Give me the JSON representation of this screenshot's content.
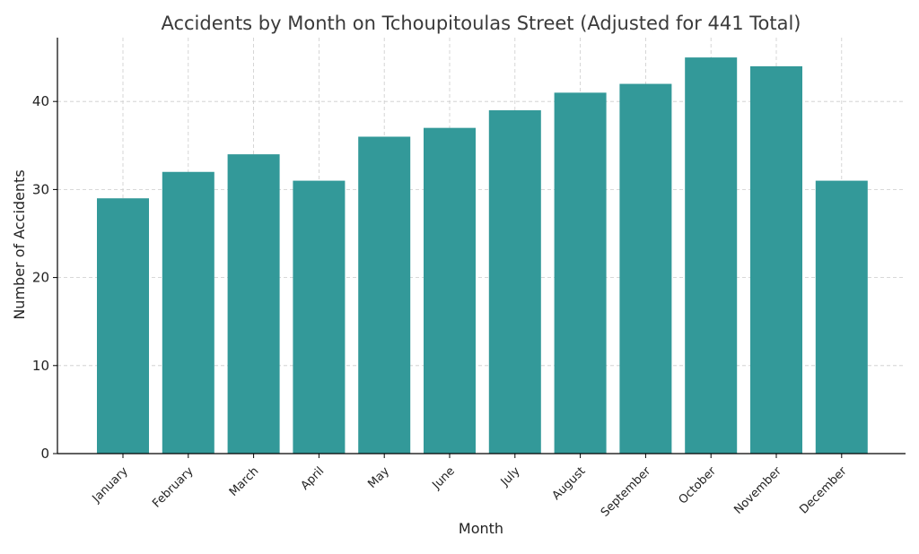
{
  "chart_data": {
    "type": "bar",
    "title": "Accidents by Month on Tchoupitoulas Street (Adjusted for 441 Total)",
    "xlabel": "Month",
    "ylabel": "Number of Accidents",
    "categories": [
      "January",
      "February",
      "March",
      "April",
      "May",
      "June",
      "July",
      "August",
      "September",
      "October",
      "November",
      "December"
    ],
    "values": [
      29,
      32,
      34,
      31,
      36,
      37,
      39,
      41,
      42,
      45,
      44,
      31
    ],
    "ylim": [
      0,
      47.25
    ],
    "yticks": [
      0,
      10,
      20,
      30,
      40
    ],
    "grid": true,
    "bar_color": "#339999"
  }
}
